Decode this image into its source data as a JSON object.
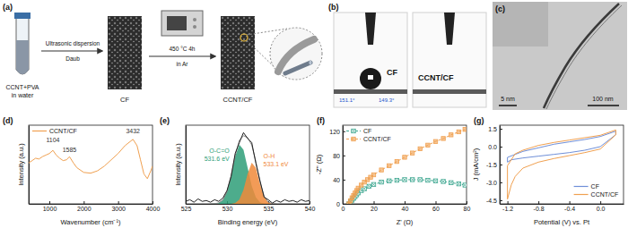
{
  "panels": {
    "a": {
      "label": "(a)",
      "vial": [
        "CCNT+PVA",
        "in water"
      ],
      "step1": {
        "above": "Ultrasonic dispersion",
        "below": "Daub"
      },
      "step2": {
        "above": "450 °C  4h",
        "below": "in Ar"
      },
      "products": [
        "CF",
        "CCNT/CF"
      ]
    },
    "b": {
      "label": "(b)",
      "samples": [
        {
          "name": "CF",
          "contact_angles": [
            "151.1°",
            "149.3°"
          ]
        },
        {
          "name": "CCNT/CF"
        }
      ]
    },
    "c": {
      "label": "(c)",
      "scale_bars": [
        "5 nm",
        "100 nm"
      ]
    }
  },
  "chart_data": [
    {
      "type": "line",
      "title": "(d)",
      "x_label": "Wavenumber (cm⁻¹)",
      "y_label": "Intensity (a.u.)",
      "xlim": [
        400,
        4000
      ],
      "xticks": [
        1000,
        2000,
        3000,
        4000
      ],
      "ylim": [
        0,
        1
      ],
      "tick_labels": "x",
      "legend": "upper left",
      "series": [
        {
          "name": "CCNT/CF",
          "color": "#f0a050",
          "x": [
            400,
            500,
            600,
            700,
            800,
            900,
            1000,
            1104,
            1200,
            1300,
            1400,
            1500,
            1585,
            1700,
            1800,
            2000,
            2200,
            2400,
            2600,
            2800,
            3000,
            3200,
            3432,
            3550,
            3650,
            3750,
            3850,
            3950,
            4000
          ],
          "values": [
            0.52,
            0.55,
            0.58,
            0.57,
            0.6,
            0.62,
            0.64,
            0.68,
            0.62,
            0.58,
            0.55,
            0.56,
            0.6,
            0.52,
            0.46,
            0.4,
            0.39,
            0.42,
            0.48,
            0.56,
            0.64,
            0.74,
            0.82,
            0.74,
            0.56,
            0.38,
            0.32,
            0.42,
            0.48
          ]
        }
      ],
      "annotations": [
        {
          "text": "1104",
          "x": 1104,
          "y": 0.78
        },
        {
          "text": "1585",
          "x": 1585,
          "y": 0.66
        },
        {
          "text": "3432",
          "x": 3432,
          "y": 0.9
        }
      ]
    },
    {
      "type": "line",
      "title": "(e)",
      "x_label": "Binding energy (eV)",
      "y_label": "Intensity (a.u.)",
      "xlim": [
        525,
        540
      ],
      "xticks": [
        525,
        530,
        535,
        540
      ],
      "ylim": [
        0,
        0.95
      ],
      "tick_labels": "x",
      "series": [
        {
          "type": "area",
          "color": "#2e9e78",
          "x": [
            528,
            528.5,
            529,
            529.5,
            530,
            530.5,
            531,
            531.5,
            532,
            532.5,
            533,
            533.5,
            534,
            534.5,
            535,
            535.5,
            536
          ],
          "values": [
            0,
            0.002,
            0.011,
            0.047,
            0.148,
            0.341,
            0.577,
            0.716,
            0.652,
            0.437,
            0.215,
            0.078,
            0.02,
            0.004,
            0.001,
            0,
            0
          ]
        },
        {
          "type": "area",
          "color": "#f08a3a",
          "x": [
            528,
            528.5,
            529,
            529.5,
            530,
            530.5,
            531,
            531.5,
            532,
            532.5,
            533,
            533.5,
            534,
            534.5,
            535,
            535.5,
            536
          ],
          "values": [
            0,
            0,
            0,
            0,
            0,
            0.001,
            0.01,
            0.051,
            0.171,
            0.363,
            0.496,
            0.434,
            0.243,
            0.088,
            0.02,
            0.003,
            0
          ]
        },
        {
          "type": "line",
          "color": "#888888",
          "x": [
            528,
            528.5,
            529,
            529.5,
            530,
            530.5,
            531,
            531.5,
            532,
            532.5,
            533,
            533.5,
            534,
            534.5,
            535,
            535.5,
            536
          ],
          "values": [
            0,
            0.002,
            0.011,
            0.047,
            0.148,
            0.342,
            0.587,
            0.767,
            0.823,
            0.8,
            0.711,
            0.512,
            0.263,
            0.092,
            0.021,
            0.003,
            0
          ]
        },
        {
          "type": "line",
          "color": "#222222",
          "x": [
            525,
            525.5,
            526,
            526.5,
            527,
            527.5,
            528,
            528.5,
            529,
            529.5,
            530,
            530.5,
            531,
            531.5,
            532,
            532.5,
            533,
            533.5,
            534,
            534.5,
            535,
            535.5,
            536,
            536.5,
            537,
            537.5,
            538,
            538.5,
            539,
            539.5,
            540
          ],
          "values": [
            0.03,
            0.05,
            0.02,
            0.06,
            0.03,
            0.04,
            0.02,
            0.05,
            0.03,
            0.07,
            0.16,
            0.33,
            0.61,
            0.74,
            0.86,
            0.79,
            0.74,
            0.49,
            0.28,
            0.08,
            0.05,
            0.01,
            0.04,
            0.02,
            0.05,
            0.03,
            0.04,
            0.02,
            0.05,
            0.03,
            0.04
          ]
        }
      ],
      "annotations": [
        {
          "text": "O-C=O",
          "x": 531.6,
          "y": 0.62
        },
        {
          "text": "531.6 eV",
          "x": 531.6,
          "y": 0.52
        },
        {
          "text": "O-H",
          "x": 533.1,
          "y": 0.55
        },
        {
          "text": "533.1 eV",
          "x": 533.1,
          "y": 0.45
        }
      ]
    },
    {
      "type": "line",
      "title": "(f)",
      "x_label": "Z' (Ω)",
      "y_label": "-Z'' (Ω)",
      "xlim": [
        0,
        80
      ],
      "xticks": [
        0,
        20,
        40,
        60,
        80
      ],
      "ylim": [
        0,
        130
      ],
      "yticks": [
        0,
        40,
        80,
        120
      ],
      "legend": "upper left",
      "series": [
        {
          "name": "CF",
          "color": "#3aa58e",
          "marker": "square-x",
          "line_style": "dashed",
          "x": [
            4,
            5,
            6,
            7,
            8,
            9,
            10,
            12,
            14,
            17,
            20,
            25,
            30,
            35,
            40,
            45,
            50,
            55,
            60,
            65,
            70,
            75,
            79
          ],
          "values": [
            0,
            3,
            6,
            9,
            12,
            15,
            18,
            22,
            25,
            29,
            32,
            36,
            38,
            39,
            40,
            40,
            40,
            39,
            38,
            37,
            35,
            33,
            31
          ]
        },
        {
          "name": "CCNT/CF",
          "color": "#f0a050",
          "marker": "square",
          "line_style": "dashed",
          "x": [
            4,
            5,
            6,
            7,
            8,
            9,
            10,
            12,
            14,
            16,
            18,
            20,
            25,
            30,
            35,
            40,
            45,
            50,
            55,
            60,
            65,
            70,
            75,
            79
          ],
          "values": [
            0,
            5,
            10,
            14,
            18,
            22,
            26,
            31,
            36,
            40,
            44,
            48,
            56,
            63,
            70,
            77,
            84,
            91,
            97,
            103,
            108,
            114,
            119,
            123
          ]
        }
      ]
    },
    {
      "type": "line",
      "title": "(g)",
      "x_label": "Potential (V) vs. Pt",
      "y_label": "J (mA/cm²)",
      "xlim": [
        -1.3,
        0.3
      ],
      "xticks": [
        -1.2,
        -0.8,
        -0.4,
        {
          "value": 0,
          "label": "0.0"
        }
      ],
      "ylim": [
        -4.8,
        1.8
      ],
      "yticks": [
        -4.5,
        {
          "value": -3,
          "label": "-3.0"
        },
        -1.5,
        {
          "value": 0,
          "label": "0.0"
        },
        1.5
      ],
      "legend": "lower right",
      "series": [
        {
          "name": "CF",
          "color": "#6f8fd8",
          "x": [
            0.2,
            0,
            -0.2,
            -0.4,
            -0.6,
            -0.8,
            -1,
            -1.15,
            -1.2,
            -1.2,
            -1,
            -0.8,
            -0.6,
            -0.4,
            -0.2,
            0,
            0.2,
            0.2
          ],
          "values": [
            1,
            0,
            -0.3,
            -0.5,
            -0.65,
            -0.8,
            -0.95,
            -1.1,
            -1.3,
            -0.9,
            -0.4,
            -0.1,
            0.2,
            0.4,
            0.6,
            0.85,
            1.3,
            1
          ]
        },
        {
          "name": "CCNT/CF",
          "color": "#f0a050",
          "x": [
            0.2,
            0,
            -0.2,
            -0.4,
            -0.6,
            -0.8,
            -1,
            -1.1,
            -1.15,
            -1.2,
            -1.2,
            -1.1,
            -1,
            -0.8,
            -0.6,
            -0.4,
            -0.2,
            0,
            0.2,
            0.2
          ],
          "values": [
            1,
            -0.2,
            -0.5,
            -0.75,
            -1,
            -1.3,
            -1.8,
            -2.5,
            -3.2,
            -4.4,
            -1.6,
            -0.6,
            -0.3,
            0.1,
            0.35,
            0.55,
            0.75,
            0.95,
            1.4,
            1
          ]
        }
      ]
    }
  ]
}
